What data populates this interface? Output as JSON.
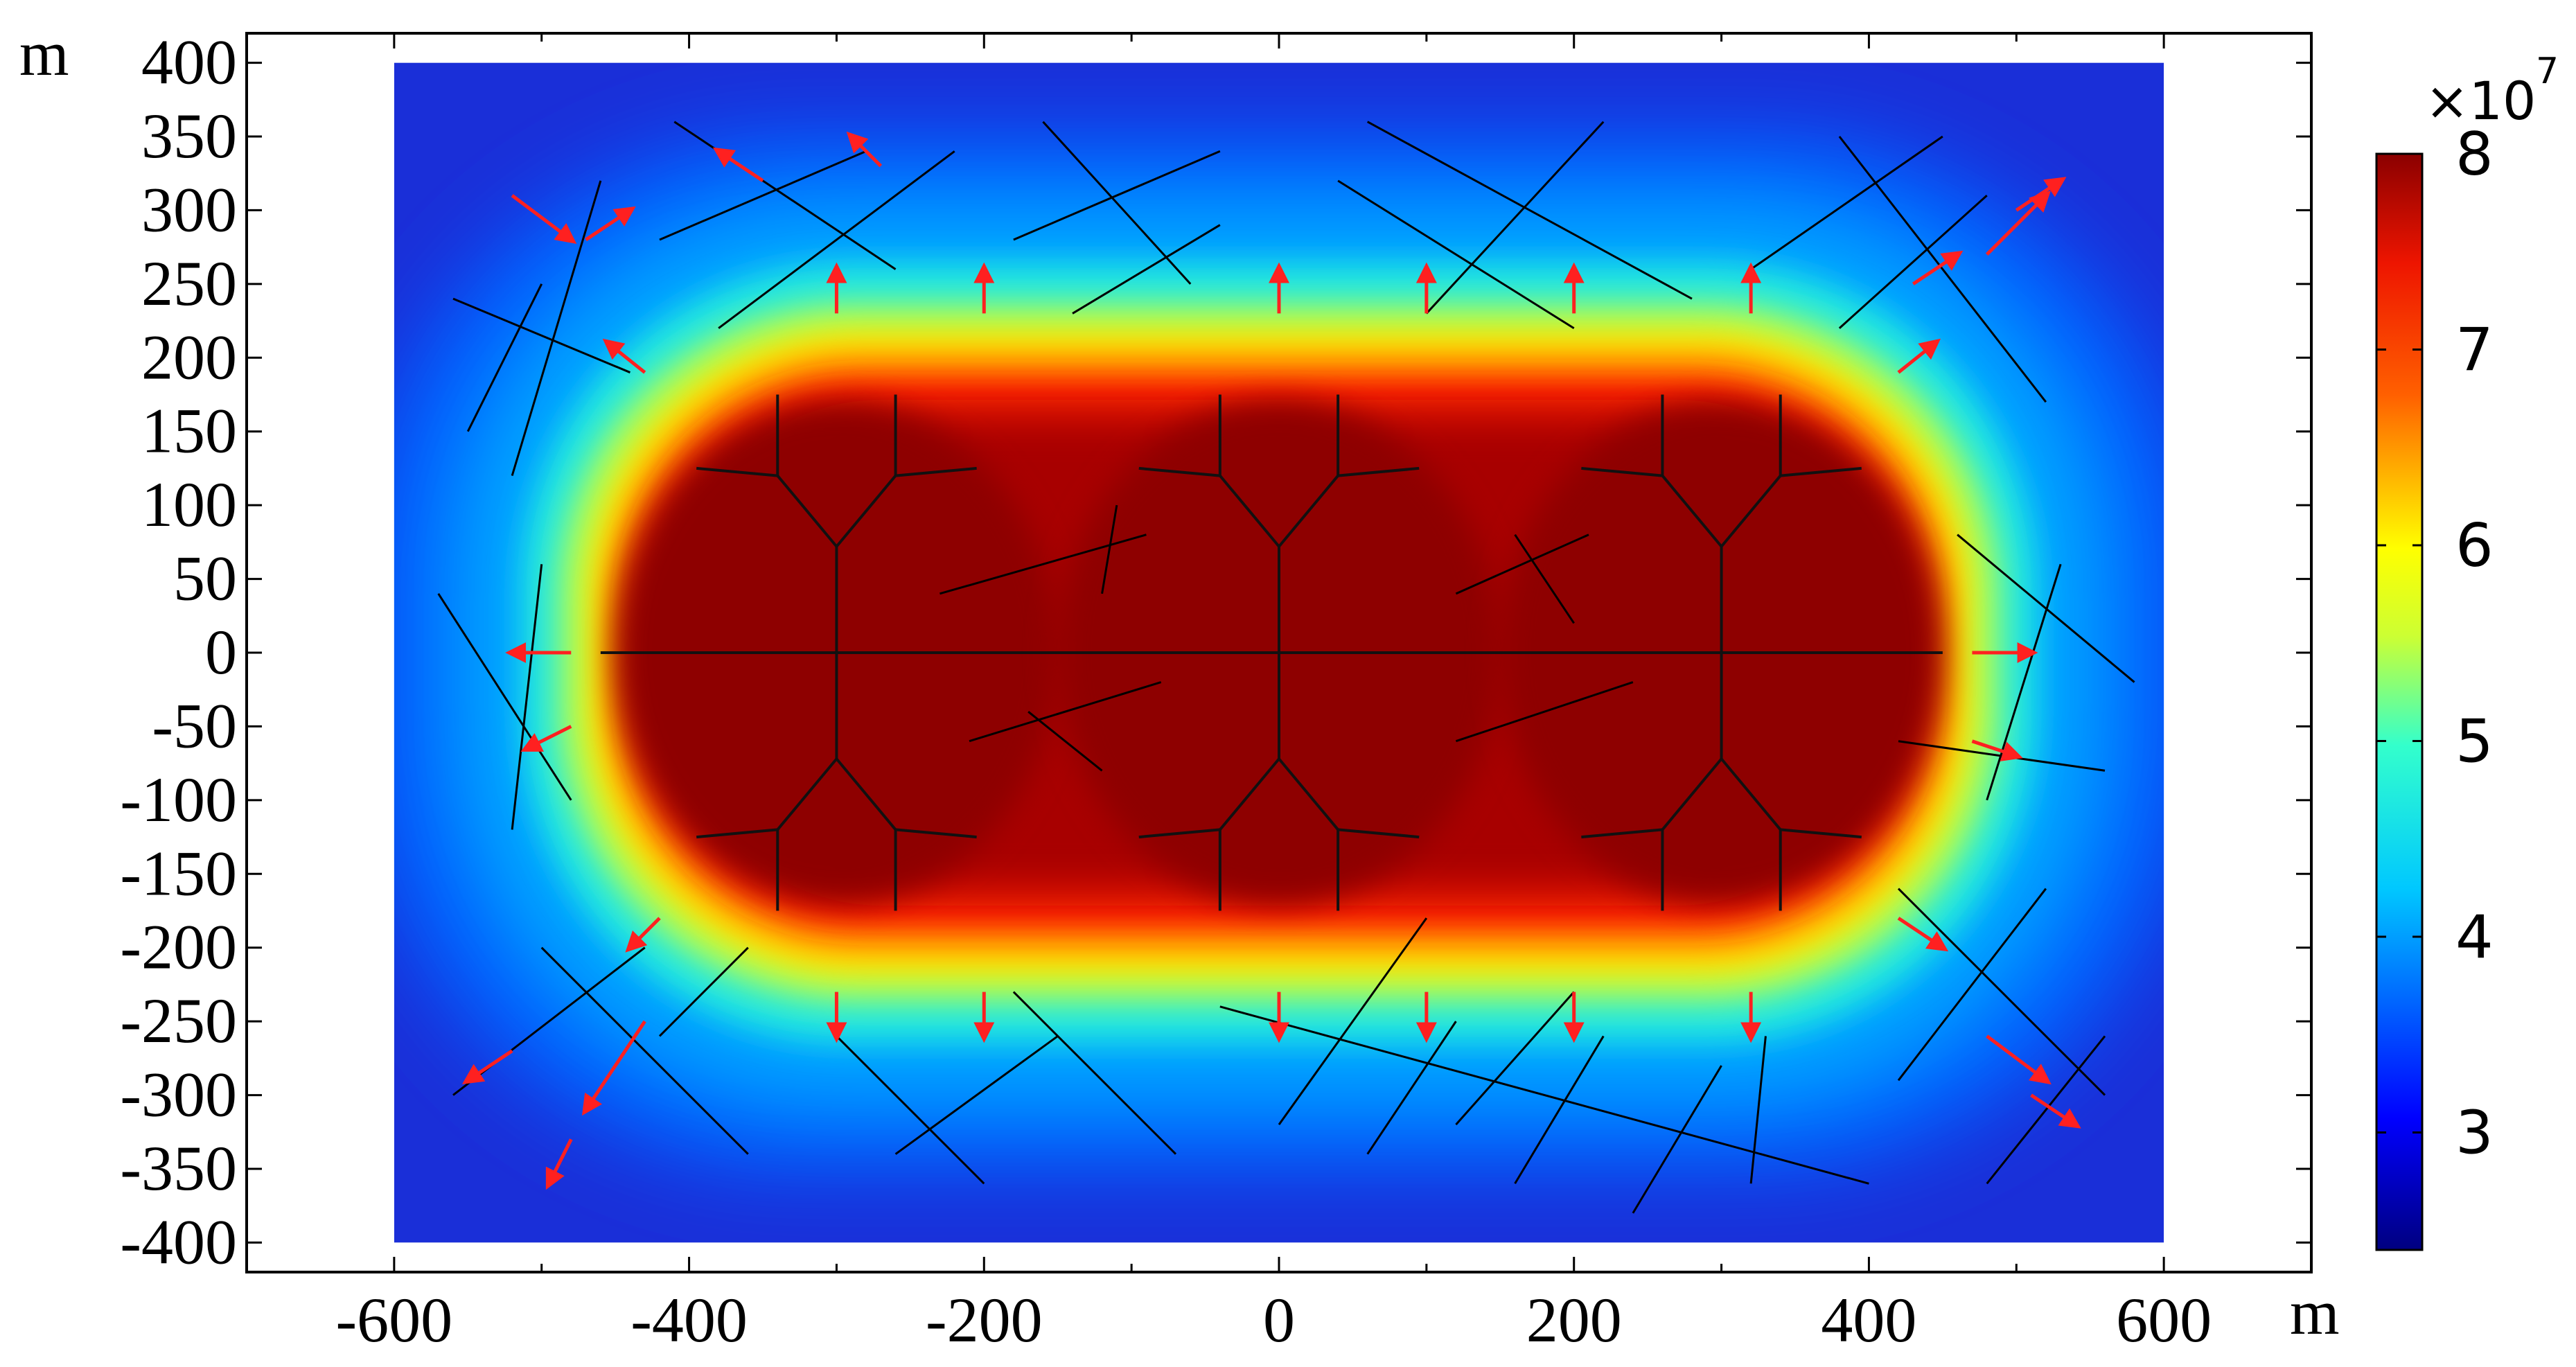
{
  "chart_data": {
    "type": "heatmap",
    "title": "",
    "xlabel": "m",
    "ylabel": "m",
    "xlim": [
      -700,
      700
    ],
    "ylim": [
      -420,
      420
    ],
    "domain_x": [
      -600,
      600
    ],
    "domain_y": [
      -400,
      400
    ],
    "x_ticks": [
      "-600",
      "-400",
      "-200",
      "0",
      "200",
      "400",
      "600"
    ],
    "x_tick_values": [
      -600,
      -400,
      -200,
      0,
      200,
      400,
      600
    ],
    "y_ticks": [
      "400",
      "350",
      "300",
      "250",
      "200",
      "150",
      "100",
      "50",
      "0",
      "-50",
      "-100",
      "-150",
      "-200",
      "-250",
      "-300",
      "-350",
      "-400"
    ],
    "y_tick_values": [
      400,
      350,
      300,
      250,
      200,
      150,
      100,
      50,
      0,
      -50,
      -100,
      -150,
      -200,
      -250,
      -300,
      -350,
      -400
    ],
    "colorbar": {
      "range": [
        2.4,
        8
      ],
      "ticks": [
        "3",
        "4",
        "5",
        "6",
        "7",
        "8"
      ],
      "tick_values": [
        3,
        4,
        5,
        6,
        7,
        8
      ],
      "multiplier": "×10",
      "exponent": "7",
      "colormap": "jet"
    },
    "field": {
      "description_free": true,
      "high_value": 8.0,
      "low_value": 2.4,
      "high_region_half_width_x": 480,
      "high_region_half_width_y": 220
    },
    "hydraulic_fractures": [
      {
        "from": [
          -460,
          0
        ],
        "to": [
          450,
          0
        ]
      },
      {
        "from": [
          -300,
          0
        ],
        "to": [
          -300,
          72
        ]
      },
      {
        "from": [
          -300,
          72
        ],
        "to": [
          -340,
          120
        ]
      },
      {
        "from": [
          -300,
          72
        ],
        "to": [
          -260,
          120
        ]
      },
      {
        "from": [
          -340,
          120
        ],
        "to": [
          -340,
          175
        ]
      },
      {
        "from": [
          -340,
          120
        ],
        "to": [
          -395,
          125
        ]
      },
      {
        "from": [
          -260,
          120
        ],
        "to": [
          -260,
          175
        ]
      },
      {
        "from": [
          -260,
          120
        ],
        "to": [
          -205,
          125
        ]
      },
      {
        "from": [
          -300,
          0
        ],
        "to": [
          -300,
          -72
        ]
      },
      {
        "from": [
          -300,
          -72
        ],
        "to": [
          -340,
          -120
        ]
      },
      {
        "from": [
          -300,
          -72
        ],
        "to": [
          -260,
          -120
        ]
      },
      {
        "from": [
          -340,
          -120
        ],
        "to": [
          -340,
          -175
        ]
      },
      {
        "from": [
          -340,
          -120
        ],
        "to": [
          -395,
          -125
        ]
      },
      {
        "from": [
          -260,
          -120
        ],
        "to": [
          -260,
          -175
        ]
      },
      {
        "from": [
          -260,
          -120
        ],
        "to": [
          -205,
          -125
        ]
      },
      {
        "from": [
          0,
          0
        ],
        "to": [
          0,
          72
        ]
      },
      {
        "from": [
          0,
          72
        ],
        "to": [
          -40,
          120
        ]
      },
      {
        "from": [
          0,
          72
        ],
        "to": [
          40,
          120
        ]
      },
      {
        "from": [
          -40,
          120
        ],
        "to": [
          -40,
          175
        ]
      },
      {
        "from": [
          -40,
          120
        ],
        "to": [
          -95,
          125
        ]
      },
      {
        "from": [
          40,
          120
        ],
        "to": [
          40,
          175
        ]
      },
      {
        "from": [
          40,
          120
        ],
        "to": [
          95,
          125
        ]
      },
      {
        "from": [
          0,
          0
        ],
        "to": [
          0,
          -72
        ]
      },
      {
        "from": [
          0,
          -72
        ],
        "to": [
          -40,
          -120
        ]
      },
      {
        "from": [
          0,
          -72
        ],
        "to": [
          40,
          -120
        ]
      },
      {
        "from": [
          -40,
          -120
        ],
        "to": [
          -40,
          -175
        ]
      },
      {
        "from": [
          -40,
          -120
        ],
        "to": [
          -95,
          -125
        ]
      },
      {
        "from": [
          40,
          -120
        ],
        "to": [
          40,
          -175
        ]
      },
      {
        "from": [
          40,
          -120
        ],
        "to": [
          95,
          -125
        ]
      },
      {
        "from": [
          300,
          0
        ],
        "to": [
          300,
          72
        ]
      },
      {
        "from": [
          300,
          72
        ],
        "to": [
          260,
          120
        ]
      },
      {
        "from": [
          300,
          72
        ],
        "to": [
          340,
          120
        ]
      },
      {
        "from": [
          260,
          120
        ],
        "to": [
          260,
          175
        ]
      },
      {
        "from": [
          260,
          120
        ],
        "to": [
          205,
          125
        ]
      },
      {
        "from": [
          340,
          120
        ],
        "to": [
          340,
          175
        ]
      },
      {
        "from": [
          340,
          120
        ],
        "to": [
          395,
          125
        ]
      },
      {
        "from": [
          300,
          0
        ],
        "to": [
          300,
          -72
        ]
      },
      {
        "from": [
          300,
          -72
        ],
        "to": [
          260,
          -120
        ]
      },
      {
        "from": [
          300,
          -72
        ],
        "to": [
          340,
          -120
        ]
      },
      {
        "from": [
          260,
          -120
        ],
        "to": [
          260,
          -175
        ]
      },
      {
        "from": [
          260,
          -120
        ],
        "to": [
          205,
          -125
        ]
      },
      {
        "from": [
          340,
          -120
        ],
        "to": [
          340,
          -175
        ]
      },
      {
        "from": [
          340,
          -120
        ],
        "to": [
          395,
          -125
        ]
      }
    ],
    "natural_fractures": [
      {
        "from": [
          -410,
          360
        ],
        "to": [
          -260,
          260
        ]
      },
      {
        "from": [
          -420,
          280
        ],
        "to": [
          -280,
          340
        ]
      },
      {
        "from": [
          -380,
          220
        ],
        "to": [
          -220,
          340
        ]
      },
      {
        "from": [
          -160,
          360
        ],
        "to": [
          -60,
          250
        ]
      },
      {
        "from": [
          -180,
          280
        ],
        "to": [
          -40,
          340
        ]
      },
      {
        "from": [
          -140,
          230
        ],
        "to": [
          -40,
          290
        ]
      },
      {
        "from": [
          60,
          360
        ],
        "to": [
          280,
          240
        ]
      },
      {
        "from": [
          40,
          320
        ],
        "to": [
          200,
          220
        ]
      },
      {
        "from": [
          100,
          230
        ],
        "to": [
          220,
          360
        ]
      },
      {
        "from": [
          380,
          350
        ],
        "to": [
          520,
          170
        ]
      },
      {
        "from": [
          320,
          260
        ],
        "to": [
          450,
          350
        ]
      },
      {
        "from": [
          380,
          220
        ],
        "to": [
          480,
          310
        ]
      },
      {
        "from": [
          -560,
          240
        ],
        "to": [
          -440,
          190
        ]
      },
      {
        "from": [
          -520,
          120
        ],
        "to": [
          -460,
          320
        ]
      },
      {
        "from": [
          -500,
          250
        ],
        "to": [
          -550,
          150
        ]
      },
      {
        "from": [
          -570,
          40
        ],
        "to": [
          -480,
          -100
        ]
      },
      {
        "from": [
          -520,
          -120
        ],
        "to": [
          -500,
          60
        ]
      },
      {
        "from": [
          -110,
          100
        ],
        "to": [
          -120,
          40
        ]
      },
      {
        "from": [
          -230,
          40
        ],
        "to": [
          -90,
          80
        ]
      },
      {
        "from": [
          -170,
          -40
        ],
        "to": [
          -120,
          -80
        ]
      },
      {
        "from": [
          -210,
          -60
        ],
        "to": [
          -80,
          -20
        ]
      },
      {
        "from": [
          120,
          40
        ],
        "to": [
          210,
          80
        ]
      },
      {
        "from": [
          160,
          80
        ],
        "to": [
          200,
          20
        ]
      },
      {
        "from": [
          120,
          -60
        ],
        "to": [
          240,
          -20
        ]
      },
      {
        "from": [
          460,
          80
        ],
        "to": [
          580,
          -20
        ]
      },
      {
        "from": [
          530,
          60
        ],
        "to": [
          480,
          -100
        ]
      },
      {
        "from": [
          420,
          -60
        ],
        "to": [
          560,
          -80
        ]
      },
      {
        "from": [
          520,
          -160
        ],
        "to": [
          420,
          -290
        ]
      },
      {
        "from": [
          420,
          -160
        ],
        "to": [
          560,
          -300
        ]
      },
      {
        "from": [
          480,
          -360
        ],
        "to": [
          560,
          -260
        ]
      },
      {
        "from": [
          -560,
          -300
        ],
        "to": [
          -430,
          -200
        ]
      },
      {
        "from": [
          -500,
          -200
        ],
        "to": [
          -360,
          -340
        ]
      },
      {
        "from": [
          -420,
          -260
        ],
        "to": [
          -360,
          -200
        ]
      },
      {
        "from": [
          -300,
          -260
        ],
        "to": [
          -200,
          -360
        ]
      },
      {
        "from": [
          -260,
          -340
        ],
        "to": [
          -150,
          -260
        ]
      },
      {
        "from": [
          -180,
          -230
        ],
        "to": [
          -70,
          -340
        ]
      },
      {
        "from": [
          -40,
          -240
        ],
        "to": [
          400,
          -360
        ]
      },
      {
        "from": [
          0,
          -320
        ],
        "to": [
          100,
          -180
        ]
      },
      {
        "from": [
          60,
          -340
        ],
        "to": [
          120,
          -250
        ]
      },
      {
        "from": [
          120,
          -320
        ],
        "to": [
          200,
          -230
        ]
      },
      {
        "from": [
          160,
          -360
        ],
        "to": [
          220,
          -260
        ]
      },
      {
        "from": [
          240,
          -380
        ],
        "to": [
          300,
          -280
        ]
      },
      {
        "from": [
          320,
          -360
        ],
        "to": [
          330,
          -260
        ]
      }
    ],
    "flow_vectors": [
      {
        "x": -520,
        "y": 310,
        "dx": 40,
        "dy": -30
      },
      {
        "x": -470,
        "y": 280,
        "dx": 30,
        "dy": 20
      },
      {
        "x": -350,
        "y": 320,
        "dx": -30,
        "dy": 20
      },
      {
        "x": -270,
        "y": 330,
        "dx": -20,
        "dy": 20
      },
      {
        "x": -300,
        "y": 230,
        "dx": 0,
        "dy": 30
      },
      {
        "x": -200,
        "y": 230,
        "dx": 0,
        "dy": 30
      },
      {
        "x": 0,
        "y": 230,
        "dx": 0,
        "dy": 30
      },
      {
        "x": 100,
        "y": 230,
        "dx": 0,
        "dy": 30
      },
      {
        "x": 200,
        "y": 230,
        "dx": 0,
        "dy": 30
      },
      {
        "x": 320,
        "y": 230,
        "dx": 0,
        "dy": 30
      },
      {
        "x": -430,
        "y": 190,
        "dx": -25,
        "dy": 20
      },
      {
        "x": 420,
        "y": 190,
        "dx": 25,
        "dy": 20
      },
      {
        "x": 430,
        "y": 250,
        "dx": 30,
        "dy": 20
      },
      {
        "x": 480,
        "y": 270,
        "dx": 40,
        "dy": 40
      },
      {
        "x": 500,
        "y": 300,
        "dx": 30,
        "dy": 20
      },
      {
        "x": -480,
        "y": 0,
        "dx": -40,
        "dy": 0
      },
      {
        "x": 470,
        "y": 0,
        "dx": 40,
        "dy": 0
      },
      {
        "x": -480,
        "y": -50,
        "dx": -30,
        "dy": -15
      },
      {
        "x": 470,
        "y": -60,
        "dx": 30,
        "dy": -10
      },
      {
        "x": -300,
        "y": -230,
        "dx": 0,
        "dy": -30
      },
      {
        "x": -200,
        "y": -230,
        "dx": 0,
        "dy": -30
      },
      {
        "x": 0,
        "y": -230,
        "dx": 0,
        "dy": -30
      },
      {
        "x": 100,
        "y": -230,
        "dx": 0,
        "dy": -30
      },
      {
        "x": 200,
        "y": -230,
        "dx": 0,
        "dy": -30
      },
      {
        "x": 320,
        "y": -230,
        "dx": 0,
        "dy": -30
      },
      {
        "x": -420,
        "y": -180,
        "dx": -20,
        "dy": -20
      },
      {
        "x": 420,
        "y": -180,
        "dx": 30,
        "dy": -20
      },
      {
        "x": -430,
        "y": -250,
        "dx": -40,
        "dy": -60
      },
      {
        "x": -520,
        "y": -270,
        "dx": -30,
        "dy": -20
      },
      {
        "x": 480,
        "y": -260,
        "dx": 40,
        "dy": -30
      },
      {
        "x": 510,
        "y": -300,
        "dx": 30,
        "dy": -20
      },
      {
        "x": -480,
        "y": -330,
        "dx": -15,
        "dy": -30
      }
    ]
  }
}
